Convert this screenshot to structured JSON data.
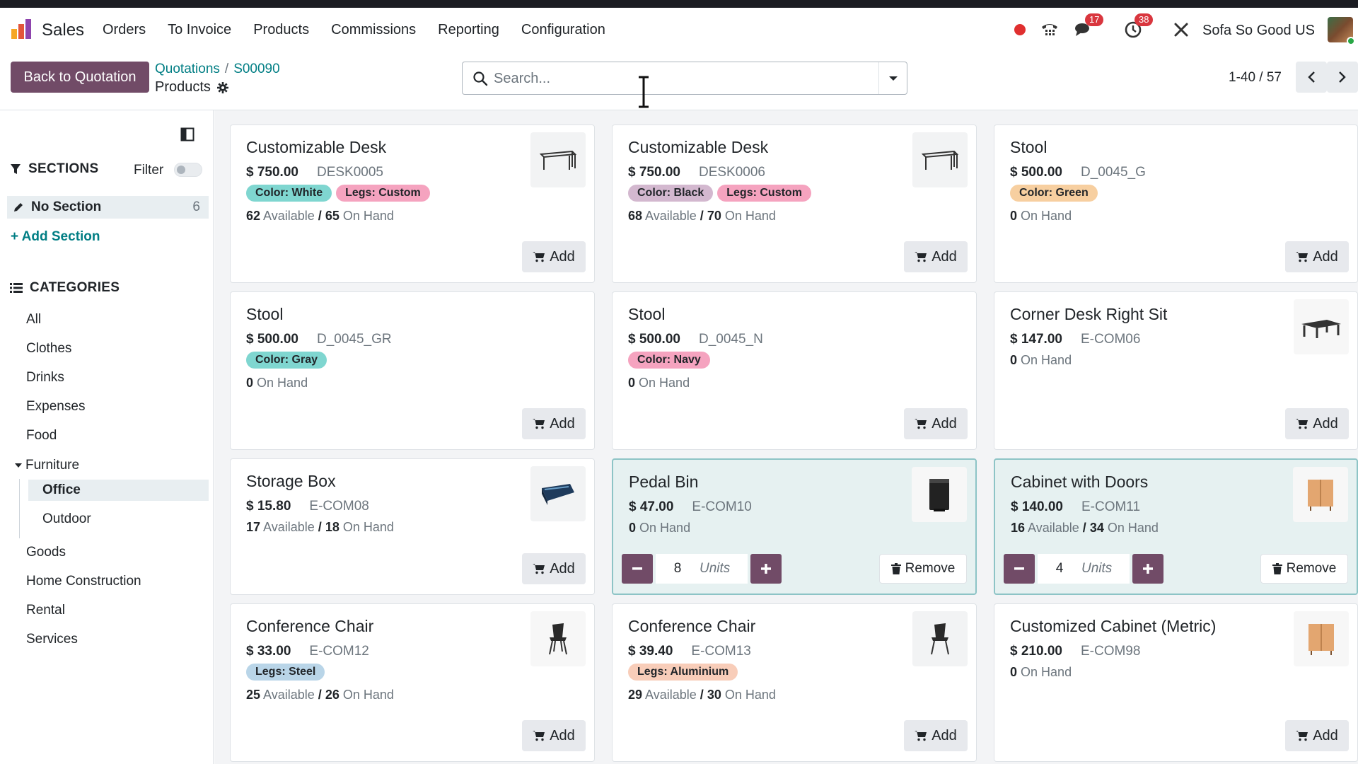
{
  "navbar": {
    "app_name": "Sales",
    "menu": [
      "Orders",
      "To Invoice",
      "Products",
      "Commissions",
      "Reporting",
      "Configuration"
    ],
    "messages_count": "17",
    "activities_count": "38",
    "company": "Sofa So Good US"
  },
  "control": {
    "back_label": "Back to Quotation",
    "breadcrumb": [
      "Quotations",
      "S00090"
    ],
    "subtitle": "Products",
    "search_placeholder": "Search...",
    "pager": "1-40 / 57"
  },
  "sidebar": {
    "sections_title": "SECTIONS",
    "filter_label": "Filter",
    "no_section_label": "No Section",
    "no_section_count": "6",
    "add_section": "+ Add Section",
    "categories_title": "CATEGORIES",
    "categories": [
      "All",
      "Clothes",
      "Drinks",
      "Expenses",
      "Food"
    ],
    "furniture": "Furniture",
    "furniture_children": [
      "Office",
      "Outdoor"
    ],
    "categories_after": [
      "Goods",
      "Home Construction",
      "Rental",
      "Services"
    ]
  },
  "labels": {
    "add": "Add",
    "remove": "Remove",
    "units": "Units",
    "available": "Available",
    "on_hand": "On Hand"
  },
  "products": [
    {
      "name": "Customizable Desk",
      "price": "$ 750.00",
      "ref": "DESK0005",
      "tags": [
        {
          "text": "Color: White",
          "bg": "#7fd6d0"
        },
        {
          "text": "Legs: Custom",
          "bg": "#f5a3bf"
        }
      ],
      "available": "62",
      "on_hand": "65",
      "thumb": "desk-icon"
    },
    {
      "name": "Customizable Desk",
      "price": "$ 750.00",
      "ref": "DESK0006",
      "tags": [
        {
          "text": "Color: Black",
          "bg": "#d3b8cf"
        },
        {
          "text": "Legs: Custom",
          "bg": "#f5a3bf"
        }
      ],
      "available": "68",
      "on_hand": "70",
      "thumb": "desk-icon"
    },
    {
      "name": "Stool",
      "price": "$ 500.00",
      "ref": "D_0045_G",
      "tags": [
        {
          "text": "Color: Green",
          "bg": "#f7cfa0"
        }
      ],
      "available": "",
      "on_hand": "0",
      "thumb": ""
    },
    {
      "name": "Stool",
      "price": "$ 500.00",
      "ref": "D_0045_GR",
      "tags": [
        {
          "text": "Color: Gray",
          "bg": "#7fd6d0"
        }
      ],
      "available": "",
      "on_hand": "0",
      "thumb": ""
    },
    {
      "name": "Stool",
      "price": "$ 500.00",
      "ref": "D_0045_N",
      "tags": [
        {
          "text": "Color: Navy",
          "bg": "#f5a3bf"
        }
      ],
      "available": "",
      "on_hand": "0",
      "thumb": ""
    },
    {
      "name": "Corner Desk Right Sit",
      "price": "$ 147.00",
      "ref": "E-COM06",
      "tags": [],
      "available": "",
      "on_hand": "0",
      "thumb": "corner-desk-icon"
    },
    {
      "name": "Storage Box",
      "price": "$ 15.80",
      "ref": "E-COM08",
      "tags": [],
      "available": "17",
      "on_hand": "18",
      "thumb": "storage-box-icon"
    },
    {
      "name": "Pedal Bin",
      "price": "$ 47.00",
      "ref": "E-COM10",
      "tags": [],
      "available": "",
      "on_hand": "0",
      "thumb": "pedal-bin-icon",
      "qty": "8"
    },
    {
      "name": "Cabinet with Doors",
      "price": "$ 140.00",
      "ref": "E-COM11",
      "tags": [],
      "available": "16",
      "on_hand": "34",
      "thumb": "cabinet-icon",
      "qty": "4"
    },
    {
      "name": "Conference Chair",
      "price": "$ 33.00",
      "ref": "E-COM12",
      "tags": [
        {
          "text": "Legs: Steel",
          "bg": "#b9d5e8"
        }
      ],
      "available": "25",
      "on_hand": "26",
      "thumb": "chair-icon"
    },
    {
      "name": "Conference Chair",
      "price": "$ 39.40",
      "ref": "E-COM13",
      "tags": [
        {
          "text": "Legs: Aluminium",
          "bg": "#f8cdb9"
        }
      ],
      "available": "29",
      "on_hand": "30",
      "thumb": "chair-icon"
    },
    {
      "name": "Customized Cabinet (Metric)",
      "price": "$ 210.00",
      "ref": "E-COM98",
      "tags": [],
      "available": "",
      "on_hand": "0",
      "thumb": "cabinet-icon"
    }
  ]
}
